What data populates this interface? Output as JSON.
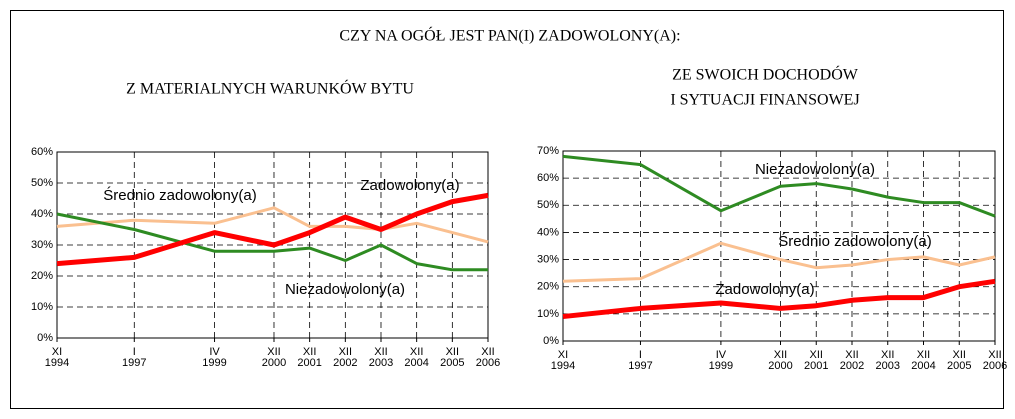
{
  "title": "CZY NA OGÓŁ JEST PAN(I) ZADOWOLONY(A):",
  "chart_data": [
    {
      "type": "line",
      "title": [
        "Z MATERIALNYCH WARUNKÓW BYTU"
      ],
      "categories": [
        [
          "XI",
          "1994"
        ],
        [
          "I",
          "1997"
        ],
        [
          "IV",
          "1999"
        ],
        [
          "XII",
          "2000"
        ],
        [
          "XII",
          "2001"
        ],
        [
          "XII",
          "2002"
        ],
        [
          "XII",
          "2003"
        ],
        [
          "XII",
          "2004"
        ],
        [
          "XII",
          "2005"
        ],
        [
          "XII",
          "2006"
        ]
      ],
      "series": [
        {
          "name": "Średnio zadowolony(a)",
          "color": "#fac090",
          "values": [
            36,
            38,
            37,
            42,
            36,
            36,
            35,
            37,
            34,
            31
          ]
        },
        {
          "name": "Niezadowolony(a)",
          "color": "#2e8b22",
          "values": [
            40,
            35,
            28,
            28,
            29,
            25,
            30,
            24,
            22,
            22
          ]
        },
        {
          "name": "Zadowolony(a)",
          "color": "#ff0000",
          "values": [
            24,
            26,
            34,
            30,
            34,
            39,
            35,
            40,
            44,
            46
          ]
        }
      ],
      "ylim": [
        0,
        60
      ],
      "yticks": [
        {
          "value": 0,
          "label": "0%"
        },
        {
          "value": 10,
          "label": "10%"
        },
        {
          "value": 20,
          "label": "20%"
        },
        {
          "value": 30,
          "label": "30%"
        },
        {
          "value": 40,
          "label": "40%"
        },
        {
          "value": 50,
          "label": "50%"
        },
        {
          "value": 60,
          "label": "60%"
        }
      ],
      "grid": true
    },
    {
      "type": "line",
      "title": [
        "ZE SWOICH DOCHODÓW",
        "I SYTUACJI FINANSOWEJ"
      ],
      "categories": [
        [
          "XI",
          "1994"
        ],
        [
          "I",
          "1997"
        ],
        [
          "IV",
          "1999"
        ],
        [
          "XII",
          "2000"
        ],
        [
          "XII",
          "2001"
        ],
        [
          "XII",
          "2002"
        ],
        [
          "XII",
          "2003"
        ],
        [
          "XII",
          "2004"
        ],
        [
          "XII",
          "2005"
        ],
        [
          "XII",
          "2006"
        ]
      ],
      "series": [
        {
          "name": "Niezadowolony(a)",
          "color": "#2e8b22",
          "values": [
            68,
            65,
            48,
            57,
            58,
            56,
            53,
            51,
            51,
            46
          ]
        },
        {
          "name": "Średnio zadowolony(a)",
          "color": "#fac090",
          "values": [
            22,
            23,
            36,
            30,
            27,
            28,
            30,
            31,
            28,
            31
          ]
        },
        {
          "name": "Zadowolony(a)",
          "color": "#ff0000",
          "values": [
            9,
            12,
            14,
            12,
            13,
            15,
            16,
            16,
            20,
            22
          ]
        }
      ],
      "ylim": [
        0,
        70
      ],
      "yticks": [
        {
          "value": 0,
          "label": "0%"
        },
        {
          "value": 10,
          "label": "10%"
        },
        {
          "value": 20,
          "label": "20%"
        },
        {
          "value": 30,
          "label": "30%"
        },
        {
          "value": 40,
          "label": "40%"
        },
        {
          "value": 50,
          "label": "50%"
        },
        {
          "value": 60,
          "label": "60%"
        },
        {
          "value": 70,
          "label": "70%"
        }
      ],
      "grid": true
    }
  ]
}
